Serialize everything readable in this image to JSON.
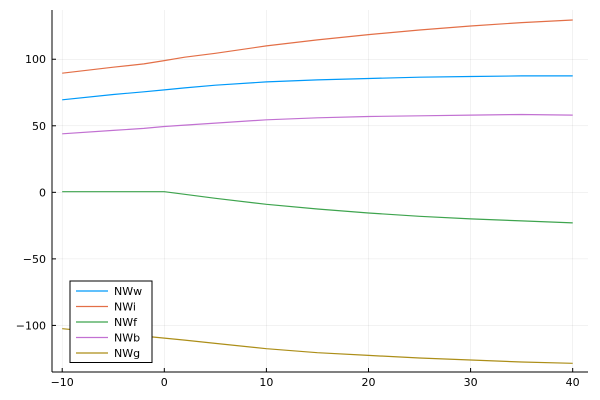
{
  "chart_data": {
    "type": "line",
    "title": "",
    "xlabel": "",
    "ylabel": "",
    "xlim": [
      -11,
      41.5
    ],
    "ylim": [
      -135,
      137
    ],
    "grid": true,
    "legend_position": "bottom-left",
    "x": [
      -10,
      -5,
      -2,
      0,
      2,
      5,
      10,
      15,
      20,
      25,
      30,
      35,
      40
    ],
    "x_ticks": [
      -10,
      0,
      10,
      20,
      30,
      40
    ],
    "x_tick_labels": [
      "−10",
      "0",
      "10",
      "20",
      "30",
      "40"
    ],
    "y_ticks": [
      -100,
      -50,
      0,
      50,
      100
    ],
    "y_tick_labels": [
      "−100",
      "−50",
      "0",
      "50",
      "100"
    ],
    "series": [
      {
        "name": "NWw",
        "color": "#009AFA",
        "values": [
          69.5,
          73.5,
          75.5,
          77,
          78.5,
          80.5,
          83,
          84.5,
          85.5,
          86.5,
          87,
          87.5,
          87.5
        ]
      },
      {
        "name": "NWi",
        "color": "#E36F47",
        "values": [
          89.5,
          94,
          96.5,
          99,
          101.5,
          104.5,
          110,
          114.5,
          118.5,
          122,
          125,
          127.5,
          129.5
        ]
      },
      {
        "name": "NWf",
        "color": "#3EA44E",
        "values": [
          0.5,
          0.5,
          0.5,
          0.5,
          -1.5,
          -4.5,
          -9,
          -12.5,
          -15.5,
          -18,
          -20,
          -21.5,
          -23
        ]
      },
      {
        "name": "NWb",
        "color": "#C271D2",
        "values": [
          44,
          46.5,
          48,
          49.5,
          50.5,
          52,
          54.5,
          56,
          57,
          57.5,
          58,
          58.5,
          58
        ]
      },
      {
        "name": "NWg",
        "color": "#AC8E18",
        "values": [
          -102.5,
          -106,
          -108,
          -109.5,
          -111,
          -113.5,
          -117.5,
          -120.5,
          -122.5,
          -124.5,
          -126,
          -127.5,
          -128.5
        ]
      }
    ]
  }
}
